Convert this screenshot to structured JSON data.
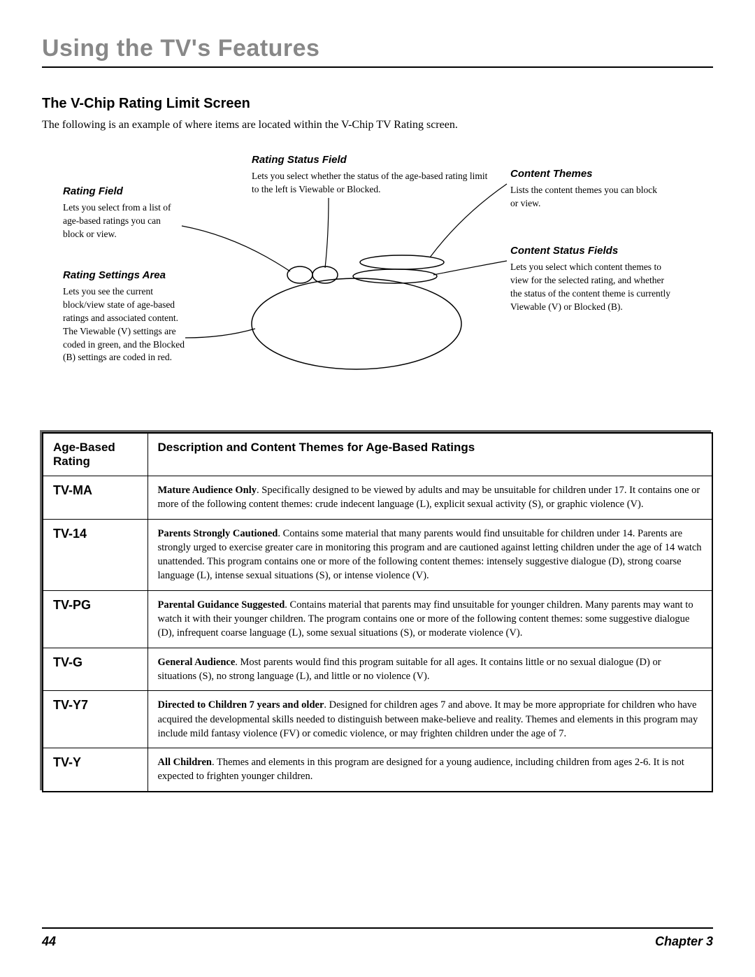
{
  "page": {
    "title": "Using the TV's Features",
    "section_title": "The V-Chip Rating Limit Screen",
    "intro": "The following is an example of where items are located within the V-Chip TV Rating screen.",
    "page_number": "44",
    "chapter": "Chapter 3"
  },
  "callouts": {
    "rating_field": {
      "title": "Rating Field",
      "body": "Lets you select from a list of age-based ratings you can block or view."
    },
    "rating_settings_area": {
      "title": "Rating Settings Area",
      "body": "Lets you see the current block/view state of age-based ratings and associated content. The Viewable (V) settings are coded in green, and the Blocked (B) settings are coded in red."
    },
    "rating_status_field": {
      "title": "Rating Status Field",
      "body": "Lets you select whether the status of the age-based rating limit to the left is Viewable or Blocked."
    },
    "content_themes": {
      "title": "Content Themes",
      "body": "Lists the content themes you can block or view."
    },
    "content_status_fields": {
      "title": "Content Status Fields",
      "body": "Lets you select which content themes to view for the selected rating, and whether the status of the content theme is currently Viewable (V) or Blocked (B)."
    }
  },
  "diagram_style": {
    "stroke": "#000000",
    "stroke_width": 1.2,
    "fill": "none"
  },
  "table": {
    "header_col1": "Age-Based Rating",
    "header_col2": "Description and Content Themes for Age-Based Ratings",
    "rows": [
      {
        "rating": "TV-MA",
        "lead": "Mature Audience Only",
        "body": ". Specifically designed to be viewed by adults and may be unsuitable for children under 17.  It contains one or more of the following content themes:  crude indecent language (L), explicit sexual activity (S), or graphic violence (V)."
      },
      {
        "rating": "TV-14",
        "lead": "Parents Strongly Cautioned",
        "body": ". Contains some material that many parents would find unsuitable for children under 14.  Parents are strongly urged to exercise greater care in monitoring this program and are cautioned against letting children under the age of 14 watch unattended.  This program contains one or more of the following content themes:  intensely suggestive dialogue (D), strong coarse language (L), intense sexual situations (S), or intense violence (V)."
      },
      {
        "rating": "TV-PG",
        "lead": "Parental Guidance Suggested",
        "body": ". Contains material that parents may find unsuitable for younger children.  Many parents may want to watch it with their younger children.  The program contains one or more of the following content themes:  some suggestive dialogue (D), infrequent coarse language (L), some sexual situations (S), or moderate violence (V)."
      },
      {
        "rating": "TV-G",
        "lead": "General Audience",
        "body": ". Most parents would find this program suitable for all ages.  It contains little or no sexual dialogue (D) or situations (S), no strong language (L), and little or no violence (V)."
      },
      {
        "rating": "TV-Y7",
        "lead": "Directed to Children 7 years and older",
        "body": ". Designed for children ages 7 and above.  It may be more appropriate for children who have acquired the developmental skills needed to distinguish between make-believe and reality.  Themes and elements in this program may include mild fantasy violence (FV) or comedic violence, or may frighten children under the age of 7."
      },
      {
        "rating": "TV-Y",
        "lead": "All Children",
        "body": ". Themes and elements in this program are designed for a young audience, including children from ages 2-6.  It is not expected to frighten younger children."
      }
    ]
  }
}
